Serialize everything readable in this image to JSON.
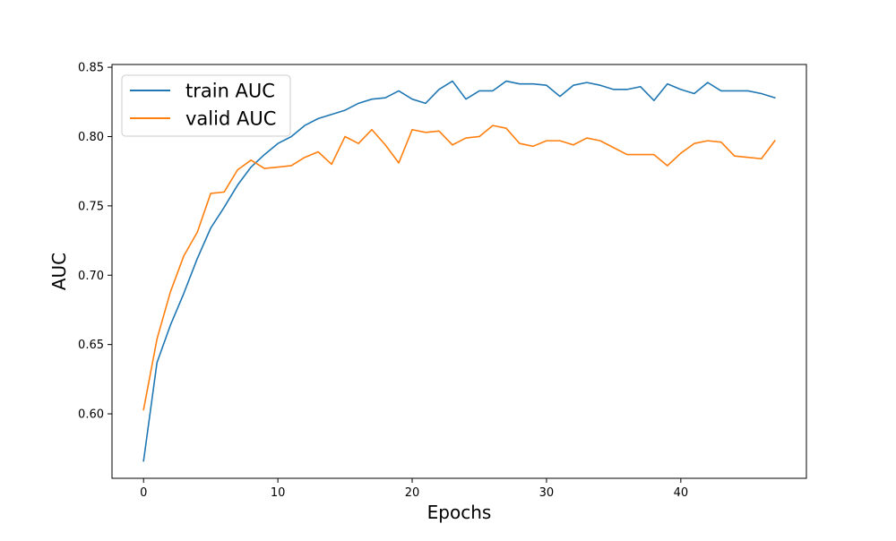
{
  "chart_data": {
    "type": "line",
    "title": "",
    "xlabel": "Epochs",
    "ylabel": "AUC",
    "xlim": [
      -2.35,
      49.35
    ],
    "ylim": [
      0.5535,
      0.852
    ],
    "xticks": [
      0,
      10,
      20,
      30,
      40
    ],
    "yticks": [
      0.6,
      0.65,
      0.7,
      0.75,
      0.8,
      0.85
    ],
    "ytick_labels": [
      "0.60",
      "0.65",
      "0.70",
      "0.75",
      "0.80",
      "0.85"
    ],
    "grid": false,
    "legend_position": "top-left",
    "x": [
      0,
      1,
      2,
      3,
      4,
      5,
      6,
      7,
      8,
      9,
      10,
      11,
      12,
      13,
      14,
      15,
      16,
      17,
      18,
      19,
      20,
      21,
      22,
      23,
      24,
      25,
      26,
      27,
      28,
      29,
      30,
      31,
      32,
      33,
      34,
      35,
      36,
      37,
      38,
      39,
      40,
      41,
      42,
      43,
      44,
      45,
      46,
      47
    ],
    "series": [
      {
        "name": "train AUC",
        "color": "#1f77b4",
        "values": [
          0.566,
          0.637,
          0.664,
          0.687,
          0.712,
          0.734,
          0.749,
          0.765,
          0.778,
          0.787,
          0.795,
          0.8,
          0.808,
          0.813,
          0.816,
          0.819,
          0.824,
          0.827,
          0.828,
          0.833,
          0.827,
          0.824,
          0.834,
          0.84,
          0.827,
          0.833,
          0.833,
          0.84,
          0.838,
          0.838,
          0.837,
          0.829,
          0.837,
          0.839,
          0.837,
          0.834,
          0.834,
          0.836,
          0.826,
          0.838,
          0.834,
          0.831,
          0.839,
          0.833,
          0.833,
          0.833,
          0.831,
          0.828
        ]
      },
      {
        "name": "valid AUC",
        "color": "#ff7f0e",
        "values": [
          0.603,
          0.654,
          0.688,
          0.714,
          0.731,
          0.759,
          0.76,
          0.776,
          0.783,
          0.777,
          0.778,
          0.779,
          0.785,
          0.789,
          0.78,
          0.8,
          0.795,
          0.805,
          0.794,
          0.781,
          0.805,
          0.803,
          0.804,
          0.794,
          0.799,
          0.8,
          0.808,
          0.806,
          0.795,
          0.793,
          0.797,
          0.797,
          0.794,
          0.799,
          0.797,
          0.792,
          0.787,
          0.787,
          0.787,
          0.779,
          0.788,
          0.795,
          0.797,
          0.796,
          0.786,
          0.785,
          0.784,
          0.797
        ]
      }
    ]
  }
}
